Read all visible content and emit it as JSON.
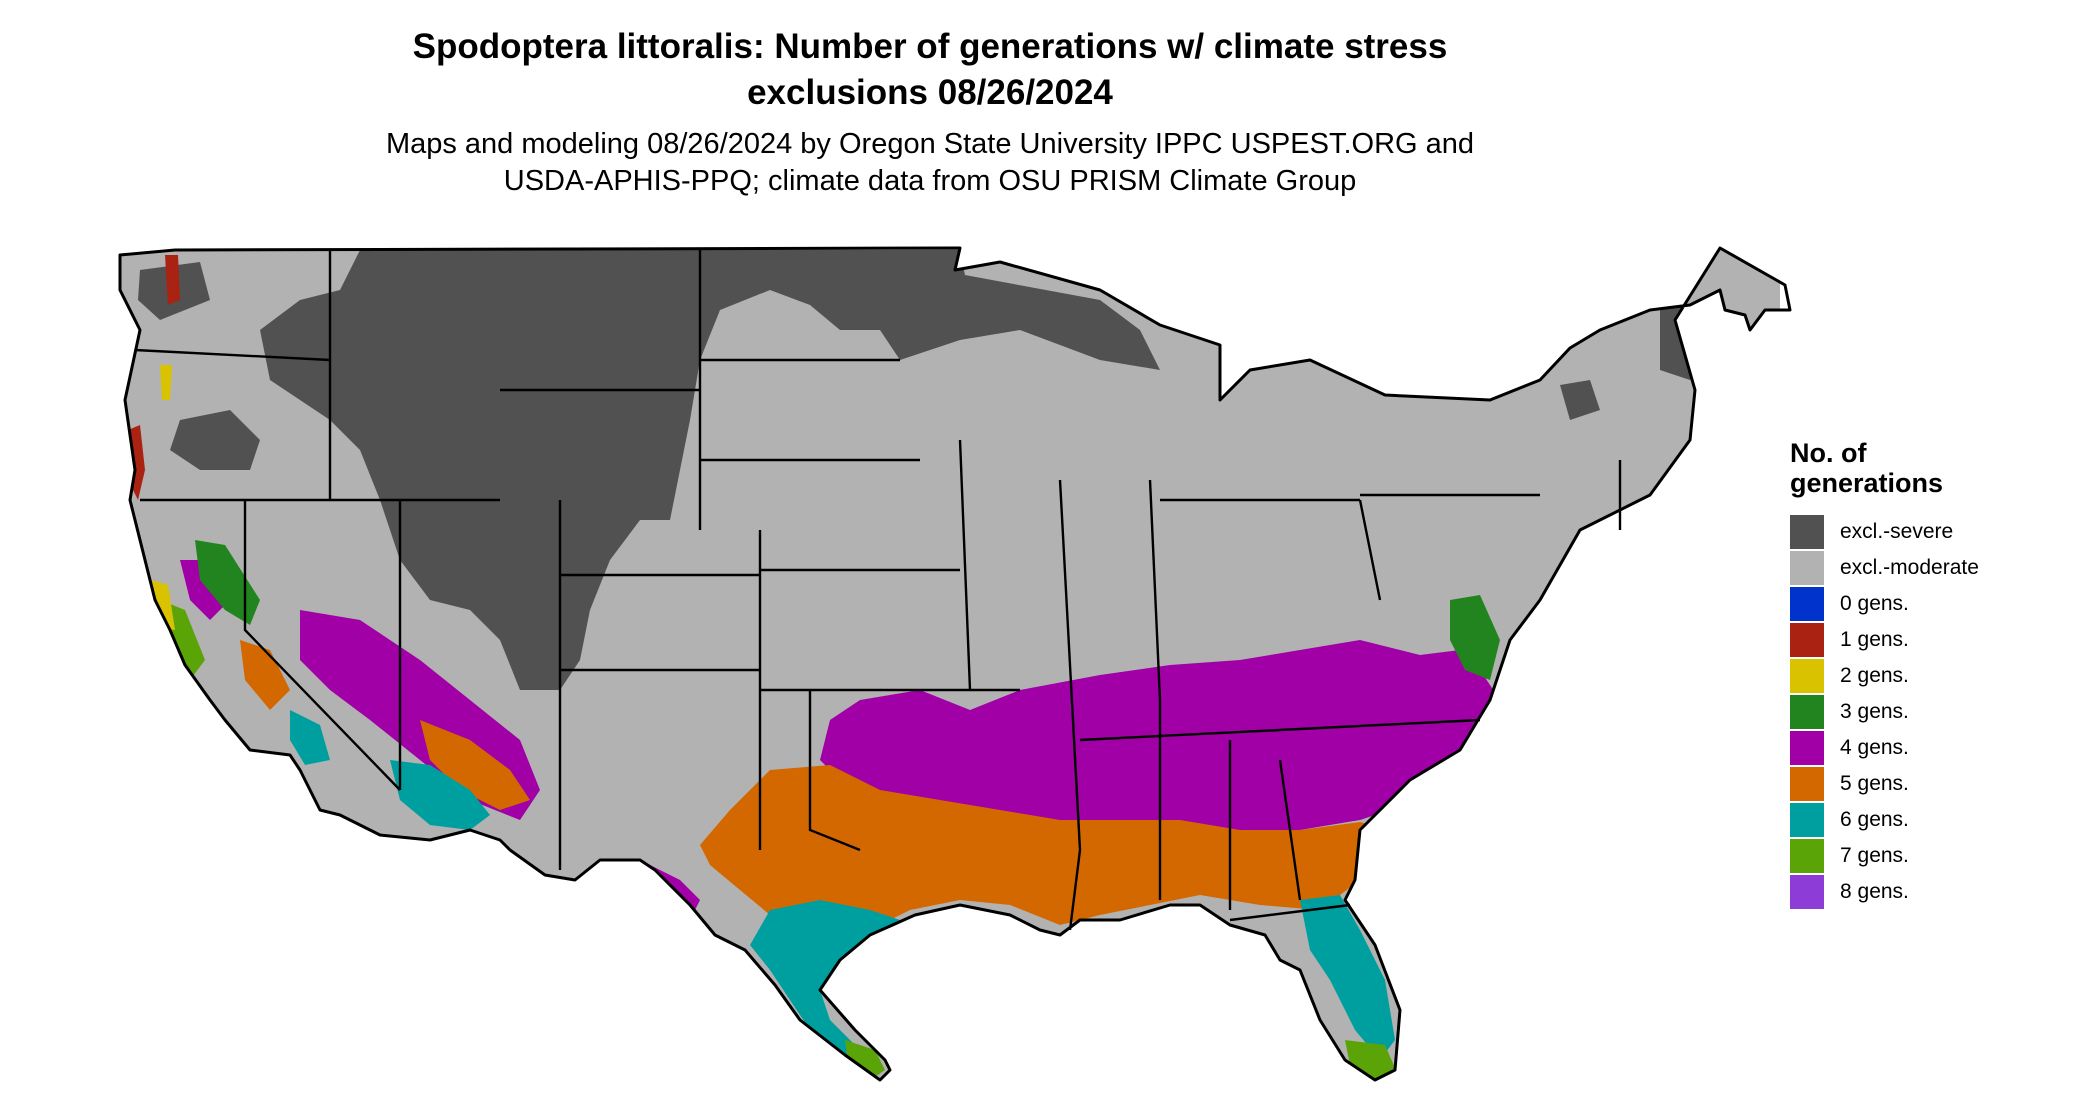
{
  "title_line1": "Spodoptera littoralis: Number of generations w/ climate stress",
  "title_line2": "exclusions 08/26/2024",
  "subtitle_line1": "Maps and modeling 08/26/2024 by Oregon State University IPPC USPEST.ORG and",
  "subtitle_line2": "USDA-APHIS-PPQ; climate data from OSU PRISM Climate Group",
  "legend": {
    "title_line1": "No. of",
    "title_line2": "generations",
    "items": [
      {
        "label": "excl.-severe",
        "color": "#515151"
      },
      {
        "label": "excl.-moderate",
        "color": "#b2b2b2"
      },
      {
        "label": "0 gens.",
        "color": "#0033cc"
      },
      {
        "label": "1 gens.",
        "color": "#aa2211"
      },
      {
        "label": "2 gens.",
        "color": "#d9c300"
      },
      {
        "label": "3 gens.",
        "color": "#22841f"
      },
      {
        "label": "4 gens.",
        "color": "#a000a5"
      },
      {
        "label": "5 gens.",
        "color": "#d46800"
      },
      {
        "label": "6 gens.",
        "color": "#009f9f"
      },
      {
        "label": "7 gens.",
        "color": "#5ba408"
      },
      {
        "label": "8 gens.",
        "color": "#8e3cd8"
      }
    ]
  },
  "map_zones": {
    "excl_severe": [
      "northern Rockies and Great Plains",
      "upper Minnesota",
      "northern Maine"
    ],
    "excl_moderate": [
      "Pacific Northwest",
      "Great Basin",
      "Midwest",
      "Northeast"
    ],
    "gens_4": [
      "southern transition belt",
      "Carolinas",
      "Arizona highlands"
    ],
    "gens_5": [
      "Texas interior",
      "Gulf states",
      "southern Georgia"
    ],
    "gens_6": [
      "Gulf coast",
      "south Texas",
      "Florida peninsula",
      "southern Arizona"
    ],
    "gens_7": [
      "Florida tip",
      "lower Rio Grande"
    ],
    "gens_3": [
      "Sierra Nevada foothills",
      "Chesapeake region"
    ]
  }
}
